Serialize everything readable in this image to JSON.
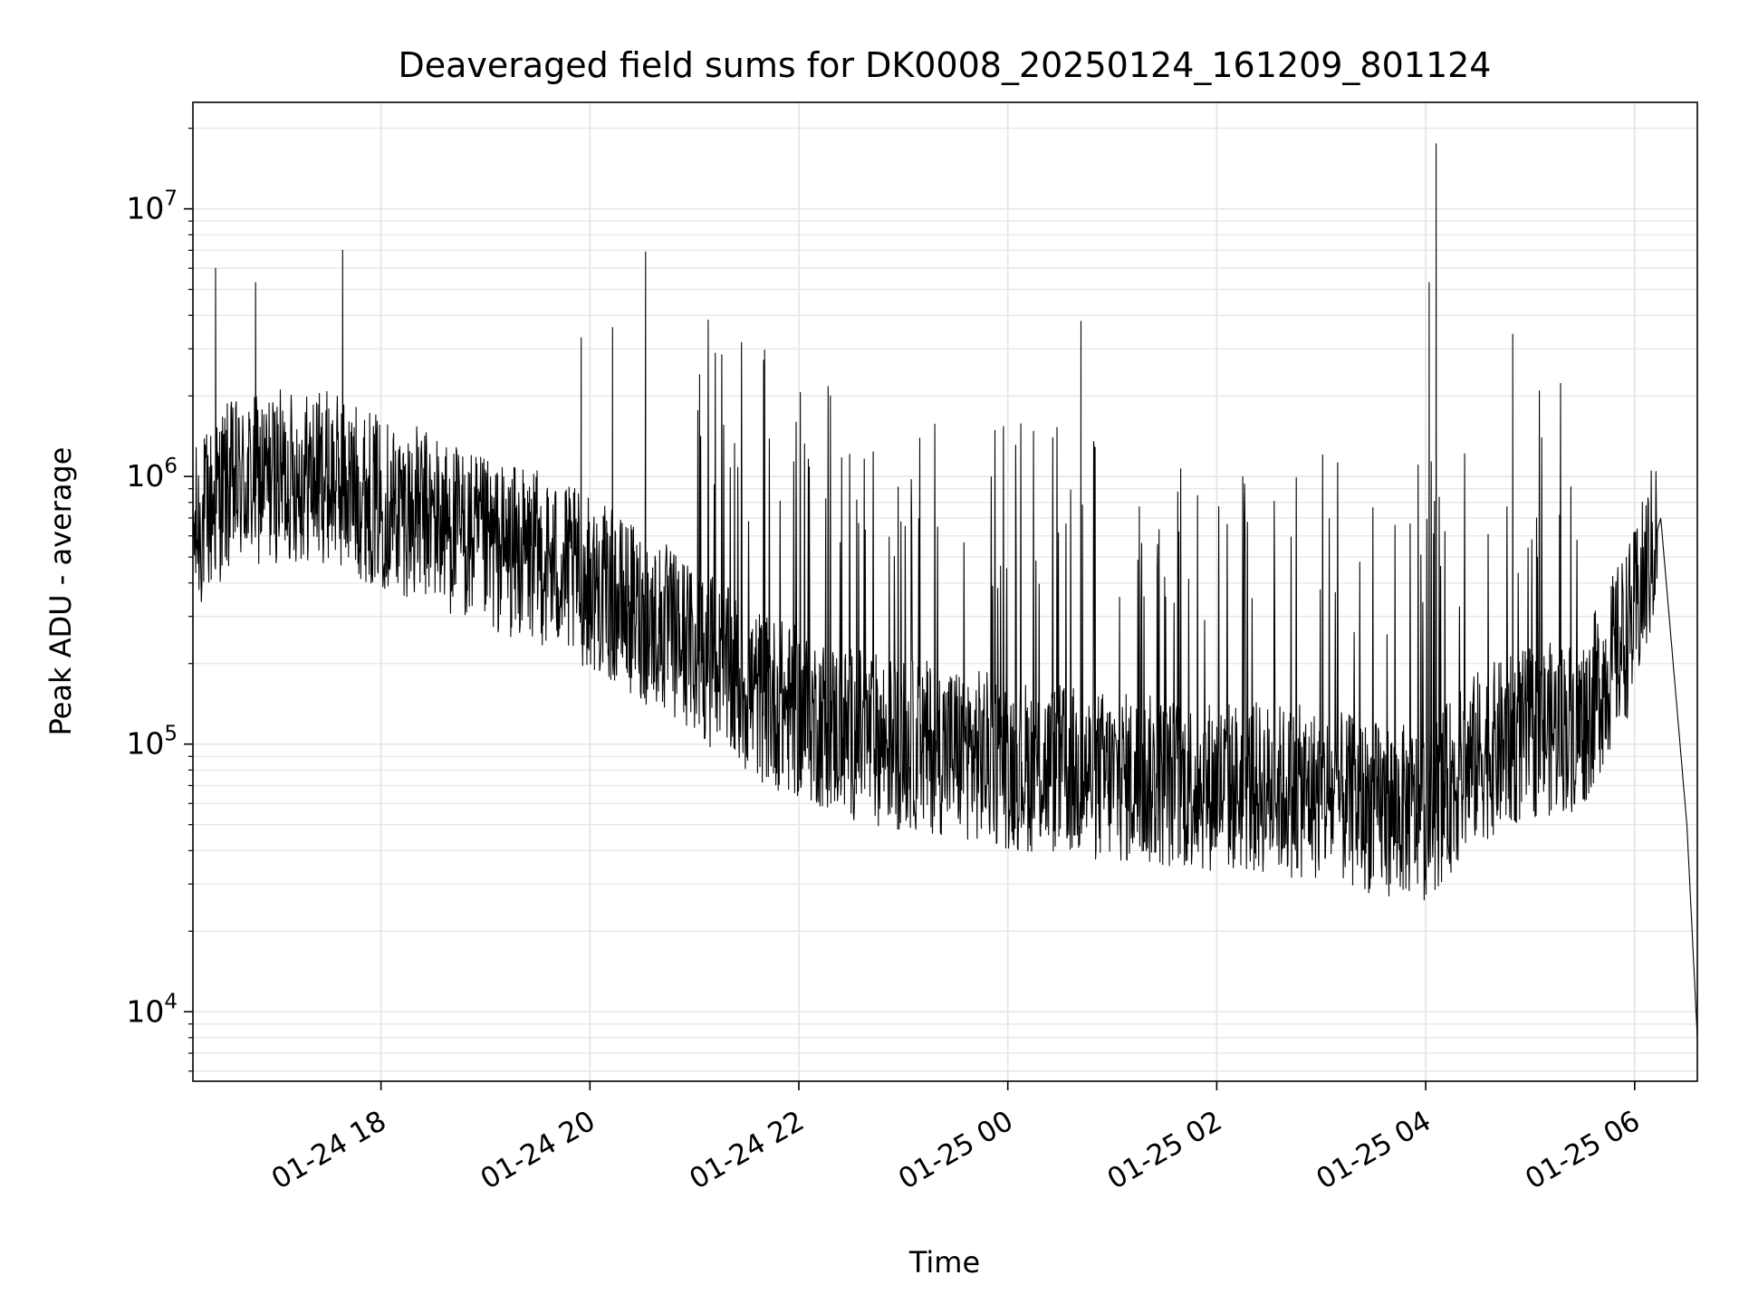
{
  "chart_data": {
    "type": "line",
    "title": "Deaveraged field sums for DK0008_20250124_161209_801124",
    "xlabel": "Time",
    "ylabel": "Peak ADU - average",
    "y_scale": "log",
    "xlim": [
      "2025-01-24 16:12",
      "2025-01-25 06:36"
    ],
    "ylim": [
      5500,
      25000000
    ],
    "x_ticks": [
      {
        "time": "2025-01-24 18:00",
        "label": "01-24 18"
      },
      {
        "time": "2025-01-24 20:00",
        "label": "01-24 20"
      },
      {
        "time": "2025-01-24 22:00",
        "label": "01-24 22"
      },
      {
        "time": "2025-01-25 00:00",
        "label": "01-25 00"
      },
      {
        "time": "2025-01-25 02:00",
        "label": "01-25 02"
      },
      {
        "time": "2025-01-25 04:00",
        "label": "01-25 04"
      },
      {
        "time": "2025-01-25 06:00",
        "label": "01-25 06"
      }
    ],
    "y_ticks": [
      {
        "value": 10000,
        "base": "10",
        "exp": "4"
      },
      {
        "value": 100000,
        "base": "10",
        "exp": "5"
      },
      {
        "value": 1000000,
        "base": "10",
        "exp": "6"
      },
      {
        "value": 10000000,
        "base": "10",
        "exp": "7"
      }
    ],
    "grid": true,
    "line_color": "#000000",
    "series": [
      {
        "x": [
          "2025-01-24 16:12",
          "2025-01-24 16:30",
          "2025-01-24 17:00",
          "2025-01-24 17:30",
          "2025-01-24 18:00",
          "2025-01-24 18:30",
          "2025-01-24 19:00",
          "2025-01-24 19:30",
          "2025-01-24 20:00",
          "2025-01-24 20:30",
          "2025-01-24 21:00",
          "2025-01-24 21:30",
          "2025-01-24 22:00",
          "2025-01-24 22:30",
          "2025-01-24 23:00",
          "2025-01-24 23:30",
          "2025-01-25 00:00",
          "2025-01-25 00:30",
          "2025-01-25 01:00",
          "2025-01-25 01:30",
          "2025-01-25 02:00",
          "2025-01-25 02:30",
          "2025-01-25 03:00",
          "2025-01-25 03:30",
          "2025-01-25 04:00",
          "2025-01-25 04:30",
          "2025-01-25 05:00",
          "2025-01-25 05:30",
          "2025-01-25 06:00",
          "2025-01-25 06:15",
          "2025-01-25 06:30",
          "2025-01-25 06:36"
        ],
        "y": [
          600000,
          900000,
          1000000,
          1000000,
          800000,
          700000,
          550000,
          500000,
          400000,
          300000,
          230000,
          160000,
          130000,
          110000,
          100000,
          95000,
          85000,
          80000,
          75000,
          72000,
          70000,
          68000,
          65000,
          58000,
          55000,
          90000,
          110000,
          120000,
          300000,
          700000,
          50000,
          8000
        ],
        "spikes": [
          {
            "x": "2025-01-24 16:25",
            "y": 6000000
          },
          {
            "x": "2025-01-24 16:48",
            "y": 5300000
          },
          {
            "x": "2025-01-24 17:38",
            "y": 7000000
          },
          {
            "x": "2025-01-24 19:55",
            "y": 3300000
          },
          {
            "x": "2025-01-24 20:13",
            "y": 3600000
          },
          {
            "x": "2025-01-24 20:32",
            "y": 6900000
          },
          {
            "x": "2025-01-24 21:03",
            "y": 2400000
          },
          {
            "x": "2025-01-25 00:42",
            "y": 3800000
          },
          {
            "x": "2025-01-25 04:02",
            "y": 5300000
          },
          {
            "x": "2025-01-25 04:06",
            "y": 17500000
          },
          {
            "x": "2025-01-25 04:50",
            "y": 3400000
          }
        ]
      }
    ]
  }
}
